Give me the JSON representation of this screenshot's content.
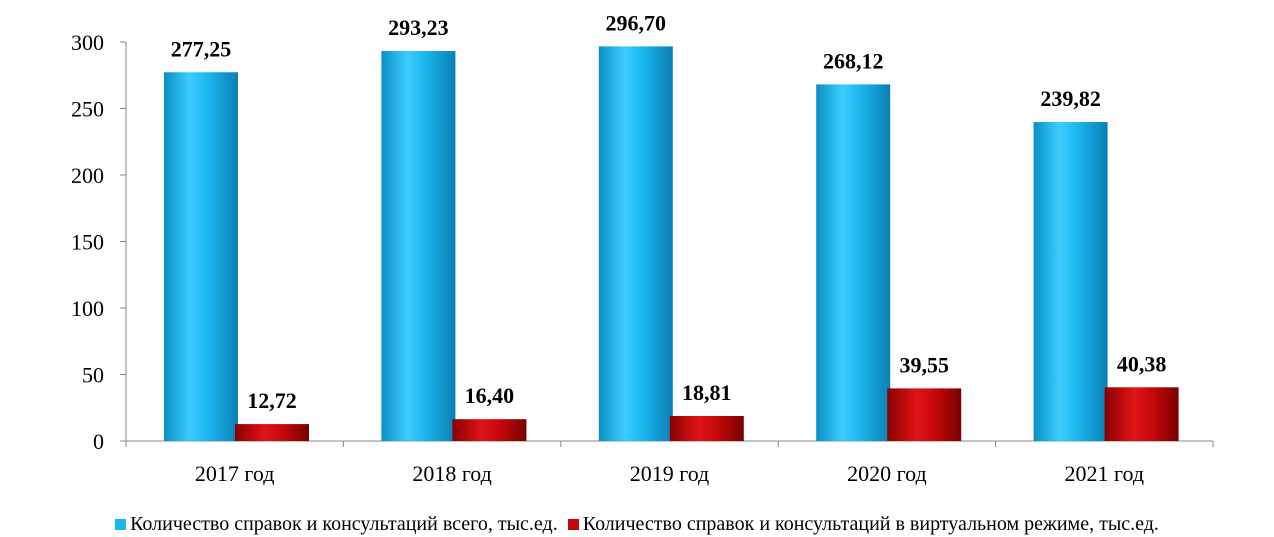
{
  "chart_data": {
    "type": "bar",
    "categories": [
      "2017 год",
      "2018 год",
      "2019 год",
      "2020 год",
      "2021 год"
    ],
    "series": [
      {
        "name": "Количество справок и консультаций всего, тыс.ед.",
        "color": "#1ab6ee",
        "values": [
          277.25,
          293.23,
          296.7,
          268.12,
          239.82
        ],
        "value_labels": [
          "277,25",
          "293,23",
          "296,70",
          "268,12",
          "239,82"
        ]
      },
      {
        "name": "Количество справок и консультаций в виртуальном режиме, тыс.ед.",
        "color": "#c4080a",
        "values": [
          12.72,
          16.4,
          18.81,
          39.55,
          40.38
        ],
        "value_labels": [
          "12,72",
          "16,40",
          "18,81",
          "39,55",
          "40,38"
        ]
      }
    ],
    "y_ticks": [
      0,
      50,
      100,
      150,
      200,
      250,
      300
    ],
    "ylim": [
      0,
      300
    ],
    "title": "",
    "xlabel": "",
    "ylabel": "",
    "grid": false,
    "legend_position": "bottom"
  }
}
